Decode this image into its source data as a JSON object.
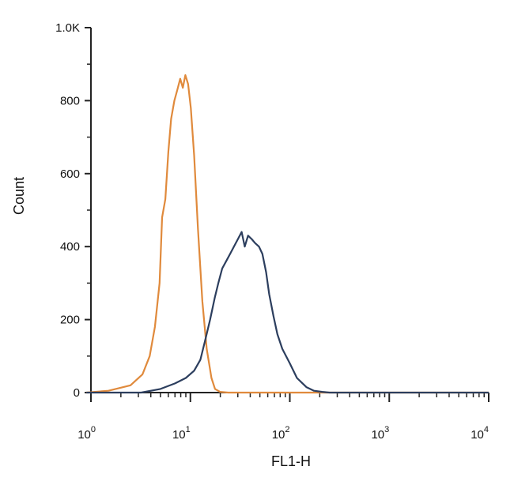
{
  "chart_data": {
    "type": "line",
    "title": "",
    "xlabel": "FL1-H",
    "ylabel": "Count",
    "xscale": "log",
    "xlim": [
      1,
      10000
    ],
    "ylim": [
      0,
      1000
    ],
    "x_ticks": [
      {
        "value": 1,
        "base": "10",
        "exp": "0"
      },
      {
        "value": 10,
        "base": "10",
        "exp": "1"
      },
      {
        "value": 100,
        "base": "10",
        "exp": "2"
      },
      {
        "value": 1000,
        "base": "10",
        "exp": "3"
      },
      {
        "value": 10000,
        "base": "10",
        "exp": "4"
      }
    ],
    "y_ticks": [
      {
        "value": 0,
        "label": "0"
      },
      {
        "value": 200,
        "label": "200"
      },
      {
        "value": 400,
        "label": "400"
      },
      {
        "value": 600,
        "label": "600"
      },
      {
        "value": 800,
        "label": "800"
      },
      {
        "value": 1000,
        "label": "1.0K"
      }
    ],
    "grid": false,
    "legend": "none",
    "series": [
      {
        "color": "#e08a3c",
        "x": [
          0.9,
          1.5,
          2.5,
          3.3,
          3.9,
          4.4,
          4.9,
          5.2,
          5.6,
          6.0,
          6.4,
          6.9,
          7.4,
          7.9,
          8.4,
          8.9,
          9.5,
          10.1,
          10.9,
          11.9,
          13.2,
          14.6,
          16.3,
          17.7,
          19.9,
          24.0,
          31.7,
          100,
          1000,
          10000
        ],
        "y": [
          0,
          5,
          20,
          50,
          100,
          180,
          300,
          480,
          530,
          660,
          750,
          800,
          830,
          860,
          835,
          870,
          845,
          780,
          650,
          450,
          250,
          120,
          40,
          10,
          2,
          0,
          0,
          0,
          0,
          0
        ]
      },
      {
        "color": "#2c3e5e",
        "x": [
          0.9,
          3.2,
          5.0,
          7.0,
          9.0,
          10.9,
          12.6,
          14.0,
          15.8,
          17.6,
          19.1,
          20.9,
          22.9,
          25.1,
          27.4,
          30.0,
          32.8,
          35.2,
          38.0,
          41.6,
          44.6,
          49.0,
          53.0,
          57.7,
          62.0,
          68.5,
          75.0,
          84.0,
          100,
          118,
          147,
          175,
          212,
          251,
          316,
          1000,
          10000
        ],
        "y": [
          0,
          0,
          10,
          25,
          40,
          60,
          90,
          140,
          200,
          260,
          300,
          340,
          360,
          380,
          400,
          420,
          440,
          400,
          430,
          420,
          410,
          400,
          380,
          330,
          270,
          210,
          160,
          120,
          80,
          40,
          15,
          5,
          2,
          0,
          0,
          0,
          0
        ]
      }
    ]
  }
}
